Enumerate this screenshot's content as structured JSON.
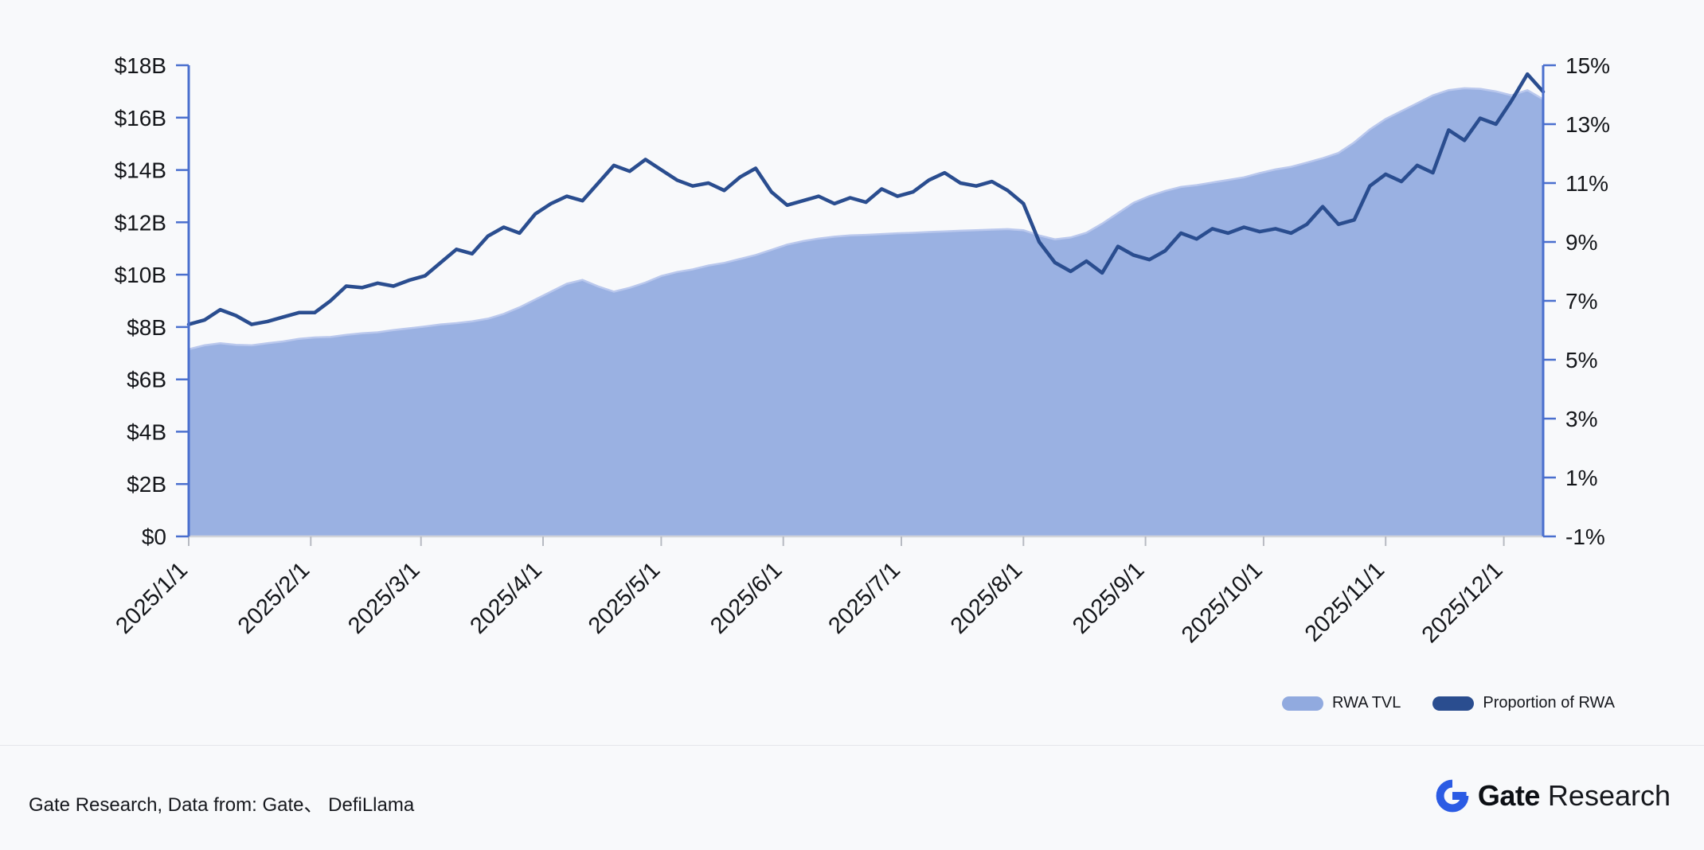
{
  "page": {
    "background": "#f8f9fb"
  },
  "chart_data": {
    "type": "area+line",
    "x_start_date": "2025/1/1",
    "x_days": [
      0,
      4,
      8,
      12,
      16,
      20,
      24,
      28,
      32,
      36,
      40,
      44,
      48,
      52,
      56,
      60,
      64,
      68,
      72,
      76,
      80,
      84,
      88,
      92,
      96,
      100,
      104,
      108,
      112,
      116,
      120,
      124,
      128,
      132,
      136,
      140,
      144,
      148,
      152,
      156,
      160,
      164,
      168,
      172,
      176,
      180,
      184,
      188,
      192,
      196,
      200,
      204,
      208,
      212,
      216,
      220,
      224,
      228,
      232,
      236,
      240,
      244,
      248,
      252,
      256,
      260,
      264,
      268,
      272,
      276,
      280,
      284,
      288,
      292,
      296,
      300,
      304,
      308,
      312,
      316,
      320,
      324,
      328,
      332,
      336,
      340,
      344
    ],
    "month_ticks": {
      "labels": [
        "2025/1/1",
        "2025/2/1",
        "2025/3/1",
        "2025/4/1",
        "2025/5/1",
        "2025/6/1",
        "2025/7/1",
        "2025/8/1",
        "2025/9/1",
        "2025/10/1",
        "2025/11/1",
        "2025/12/1"
      ],
      "day_offsets": [
        0,
        31,
        59,
        90,
        120,
        151,
        181,
        212,
        243,
        273,
        304,
        334
      ]
    },
    "series": [
      {
        "name": "RWA TVL",
        "type": "area",
        "axis": "left",
        "unit": "$B",
        "color": "#91aadf",
        "edge_color": "#bac8ed",
        "values": [
          7.15,
          7.3,
          7.38,
          7.32,
          7.3,
          7.38,
          7.45,
          7.55,
          7.6,
          7.62,
          7.7,
          7.76,
          7.8,
          7.88,
          7.95,
          8.02,
          8.1,
          8.15,
          8.22,
          8.32,
          8.5,
          8.75,
          9.05,
          9.35,
          9.65,
          9.8,
          9.55,
          9.35,
          9.5,
          9.7,
          9.95,
          10.1,
          10.2,
          10.35,
          10.45,
          10.6,
          10.75,
          10.95,
          11.15,
          11.28,
          11.38,
          11.45,
          11.5,
          11.52,
          11.55,
          11.58,
          11.6,
          11.63,
          11.65,
          11.68,
          11.7,
          11.72,
          11.74,
          11.7,
          11.5,
          11.35,
          11.42,
          11.6,
          11.95,
          12.35,
          12.75,
          13.0,
          13.2,
          13.35,
          13.42,
          13.52,
          13.62,
          13.72,
          13.88,
          14.02,
          14.12,
          14.28,
          14.45,
          14.65,
          15.05,
          15.55,
          15.95,
          16.25,
          16.55,
          16.85,
          17.05,
          17.12,
          17.1,
          17.0,
          16.85,
          17.05,
          16.7
        ]
      },
      {
        "name": "Proportion of RWA",
        "type": "line",
        "axis": "right",
        "unit": "%",
        "color": "#2a4d8f",
        "values": [
          6.2,
          6.35,
          6.7,
          6.5,
          6.2,
          6.3,
          6.45,
          6.6,
          6.6,
          7.0,
          7.5,
          7.45,
          7.6,
          7.5,
          7.7,
          7.85,
          8.3,
          8.75,
          8.6,
          9.2,
          9.5,
          9.3,
          9.95,
          10.3,
          10.55,
          10.4,
          11.0,
          11.6,
          11.4,
          11.8,
          11.45,
          11.1,
          10.9,
          11.0,
          10.75,
          11.2,
          11.5,
          10.7,
          10.25,
          10.4,
          10.55,
          10.3,
          10.5,
          10.35,
          10.8,
          10.55,
          10.7,
          11.1,
          11.35,
          11.0,
          10.9,
          11.05,
          10.75,
          10.3,
          9.0,
          8.3,
          8.0,
          8.35,
          7.95,
          8.85,
          8.55,
          8.4,
          8.7,
          9.3,
          9.1,
          9.45,
          9.3,
          9.5,
          9.35,
          9.45,
          9.3,
          9.6,
          10.2,
          9.6,
          9.75,
          10.9,
          11.3,
          11.05,
          11.6,
          11.35,
          12.8,
          12.45,
          13.2,
          13.0,
          13.8,
          14.7,
          14.1
        ]
      }
    ],
    "left_axis": {
      "min": 0,
      "max": 18,
      "step": 2,
      "ticks": [
        0,
        2,
        4,
        6,
        8,
        10,
        12,
        14,
        16,
        18
      ],
      "tick_labels": [
        "$0",
        "$2B",
        "$4B",
        "$6B",
        "$8B",
        "$10B",
        "$12B",
        "$14B",
        "$16B",
        "$18B"
      ],
      "color": "#4a6fce"
    },
    "right_axis": {
      "min": -1,
      "max": 15,
      "step": 2,
      "ticks": [
        -1,
        1,
        3,
        5,
        7,
        9,
        11,
        13,
        15
      ],
      "tick_labels": [
        "-1%",
        "1%",
        "3%",
        "5%",
        "7%",
        "9%",
        "11%",
        "13%",
        "15%"
      ],
      "color": "#4a6fce"
    },
    "grid": false,
    "legend_position": "bottom-right"
  },
  "legend": {
    "items": [
      {
        "label": "RWA TVL",
        "color": "#91aadf"
      },
      {
        "label": "Proportion of RWA",
        "color": "#2a4d8f"
      }
    ]
  },
  "footer": {
    "source_text": "Gate Research, Data from: Gate、 DefiLlama",
    "brand_bold": "Gate",
    "brand_light": "Research",
    "brand_color": "#2b5be4"
  }
}
